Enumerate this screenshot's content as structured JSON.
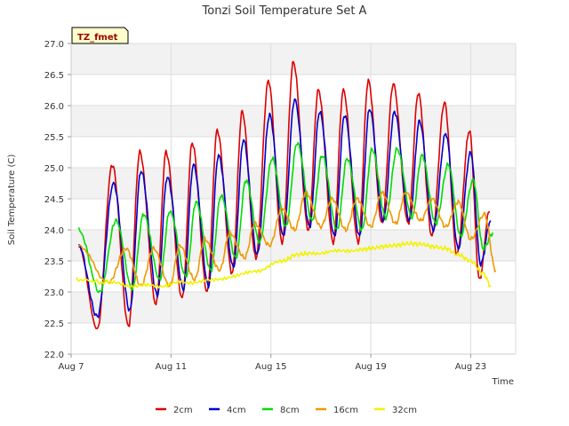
{
  "chart_data": {
    "type": "line",
    "title": "Tonzi Soil Temperature Set A",
    "xlabel": "Time",
    "ylabel": "Soil Temperature (C)",
    "annotation": "TZ_fmet",
    "xlim": [
      0,
      17.8
    ],
    "ylim": [
      22.0,
      27.0
    ],
    "y_ticks": [
      22.0,
      22.5,
      23.0,
      23.5,
      24.0,
      24.5,
      25.0,
      25.5,
      26.0,
      26.5,
      27.0
    ],
    "x_ticks": [
      {
        "value": 0,
        "label": "Aug 7"
      },
      {
        "value": 4,
        "label": "Aug 11"
      },
      {
        "value": 8,
        "label": "Aug 15"
      },
      {
        "value": 12,
        "label": "Aug 19"
      },
      {
        "value": 16,
        "label": "Aug 23"
      }
    ],
    "grid": true,
    "legend_position": "bottom",
    "series": [
      {
        "name": "2cm",
        "color": "#dd0000",
        "days": [
          0.3,
          1.05,
          1.65,
          2.3,
          2.75,
          3.4,
          3.8,
          4.45,
          4.85,
          5.45,
          5.85,
          6.45,
          6.85,
          7.4,
          7.9,
          8.45,
          8.9,
          9.5,
          9.9,
          10.5,
          10.9,
          11.5,
          11.9,
          12.45,
          12.9,
          13.5,
          13.9,
          14.45,
          14.95,
          15.45,
          15.95,
          16.35,
          16.75
        ],
        "values": [
          23.75,
          22.4,
          25.05,
          22.45,
          25.25,
          22.8,
          25.25,
          22.9,
          25.4,
          23.0,
          25.6,
          23.3,
          25.9,
          23.55,
          26.4,
          23.8,
          26.7,
          24.0,
          26.25,
          23.8,
          26.25,
          23.8,
          26.4,
          24.1,
          26.35,
          24.1,
          26.2,
          23.9,
          26.05,
          23.6,
          25.6,
          23.2,
          24.3
        ]
      },
      {
        "name": "4cm",
        "color": "#0000cc",
        "days": [
          0.3,
          1.05,
          1.7,
          2.35,
          2.8,
          3.45,
          3.85,
          4.5,
          4.9,
          5.5,
          5.9,
          6.5,
          6.9,
          7.45,
          7.95,
          8.5,
          8.95,
          9.55,
          9.95,
          10.55,
          10.95,
          11.55,
          11.95,
          12.5,
          12.95,
          13.55,
          13.95,
          14.5,
          15.0,
          15.5,
          16.0,
          16.4,
          16.8
        ],
        "values": [
          23.75,
          22.6,
          24.75,
          22.7,
          24.95,
          22.95,
          24.85,
          23.05,
          25.05,
          23.1,
          25.2,
          23.4,
          25.45,
          23.6,
          25.85,
          23.9,
          26.1,
          24.05,
          25.9,
          23.9,
          25.85,
          23.9,
          25.95,
          24.15,
          25.9,
          24.15,
          25.75,
          24.0,
          25.55,
          23.7,
          25.25,
          23.45,
          24.15
        ]
      },
      {
        "name": "8cm",
        "color": "#00dd00",
        "days": [
          0.3,
          1.15,
          1.8,
          2.45,
          2.9,
          3.55,
          3.95,
          4.6,
          5.0,
          5.6,
          6.0,
          6.6,
          7.0,
          7.55,
          8.05,
          8.6,
          9.05,
          9.65,
          10.05,
          10.65,
          11.05,
          11.65,
          12.05,
          12.6,
          13.05,
          13.65,
          14.05,
          14.6,
          15.1,
          15.6,
          16.1,
          16.5,
          16.9
        ],
        "values": [
          24.0,
          23.0,
          24.15,
          23.05,
          24.25,
          23.2,
          24.3,
          23.25,
          24.45,
          23.35,
          24.55,
          23.55,
          24.8,
          23.8,
          25.15,
          24.05,
          25.4,
          24.15,
          25.2,
          24.0,
          25.15,
          24.0,
          25.3,
          24.2,
          25.3,
          24.2,
          25.2,
          24.1,
          25.05,
          23.9,
          24.8,
          23.7,
          23.95
        ]
      },
      {
        "name": "16cm",
        "color": "#ee9900",
        "days": [
          0.3,
          1.5,
          2.2,
          2.8,
          3.3,
          3.95,
          4.35,
          4.95,
          5.35,
          5.95,
          6.35,
          6.95,
          7.35,
          7.95,
          8.45,
          8.95,
          9.4,
          10.0,
          10.45,
          11.0,
          11.45,
          12.0,
          12.45,
          13.0,
          13.4,
          14.0,
          14.45,
          15.0,
          15.5,
          16.0,
          16.55,
          17.0
        ],
        "values": [
          23.75,
          23.15,
          23.7,
          23.1,
          23.7,
          23.1,
          23.75,
          23.2,
          23.85,
          23.35,
          23.95,
          23.55,
          24.1,
          23.75,
          24.35,
          24.0,
          24.6,
          24.05,
          24.5,
          24.0,
          24.5,
          24.05,
          24.6,
          24.1,
          24.6,
          24.15,
          24.5,
          24.05,
          24.45,
          23.85,
          24.25,
          23.35
        ]
      },
      {
        "name": "32cm",
        "color": "#f2f200",
        "days": [
          0.2,
          1.5,
          2.5,
          3.5,
          4.5,
          5.5,
          6.5,
          7.5,
          8.5,
          9.0,
          9.5,
          10.5,
          11.5,
          12.0,
          12.5,
          13.0,
          13.5,
          14.0,
          14.5,
          15.0,
          15.5,
          16.0,
          16.5,
          16.8
        ],
        "values": [
          23.2,
          23.15,
          23.1,
          23.1,
          23.15,
          23.18,
          23.25,
          23.35,
          23.5,
          23.6,
          23.62,
          23.65,
          23.68,
          23.7,
          23.73,
          23.75,
          23.78,
          23.77,
          23.73,
          23.7,
          23.6,
          23.5,
          23.3,
          23.1
        ]
      }
    ]
  }
}
